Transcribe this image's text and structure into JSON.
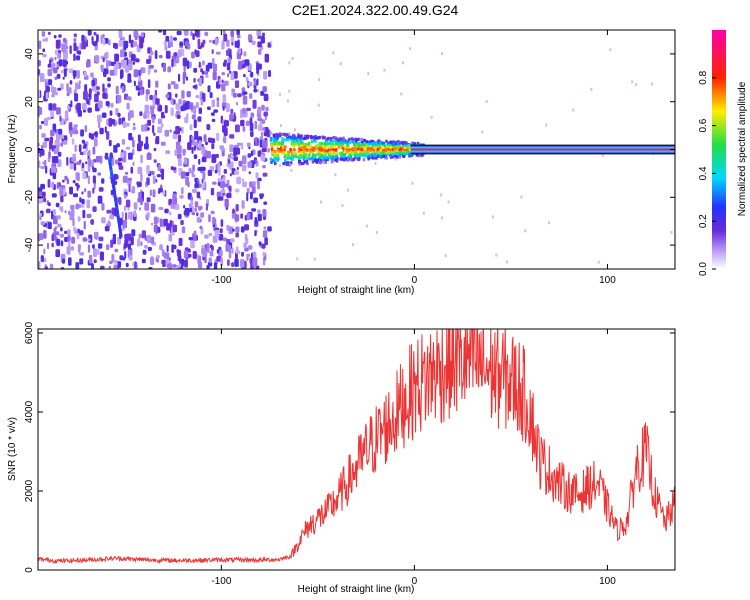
{
  "title": "C2E1.2024.322.00.49.G24",
  "colors": {
    "snr_line": "#ee3333",
    "frame": "#000000",
    "background": "#ffffff",
    "spectro_noise": "#6a2bd9",
    "spectro_core": "#cc0000",
    "spectro_band": "#2bd959"
  },
  "chart_data": [
    {
      "id": "spectrogram",
      "type": "heatmap",
      "xlabel": "Height of straight line (km)",
      "ylabel": "Frequency (Hz)",
      "xlim": [
        -195,
        135
      ],
      "ylim": [
        -50,
        50
      ],
      "xticks": [
        -100,
        0,
        100
      ],
      "xtick_labels": [
        "-100",
        "0",
        "100"
      ],
      "yticks": [
        -40,
        -20,
        0,
        20,
        40
      ],
      "ytick_labels": [
        "-40",
        "-20",
        "0",
        "20",
        "40"
      ],
      "grid": false,
      "colorbar": {
        "label": "Normalized spectral amplitude",
        "range": [
          0.0,
          1.0
        ],
        "ticks": [
          0.0,
          0.2,
          0.4,
          0.6,
          0.8
        ],
        "tick_labels": [
          "0.0",
          "0.2",
          "0.4",
          "0.6",
          "0.8"
        ],
        "colormap": "hsv-rainbow (white at 0, violet → blue → cyan → green → yellow → red → magenta)"
      },
      "regions": [
        {
          "name": "noise",
          "x_range": [
            -195,
            -75
          ],
          "freq_range": [
            -50,
            50
          ],
          "amplitude": 0.05
        },
        {
          "name": "emerging-signal",
          "x_range": [
            -75,
            5
          ],
          "freq_range": [
            -4,
            5
          ],
          "amplitude": 0.45
        },
        {
          "name": "steady-carrier",
          "x_range": [
            5,
            135
          ],
          "freq_range": [
            -1,
            1
          ],
          "amplitude": 0.95
        }
      ],
      "streak": {
        "x": [
          -158,
          -152
        ],
        "freq": [
          -4,
          -36
        ]
      }
    },
    {
      "id": "snr",
      "type": "line",
      "xlabel": "Height of straight line (km)",
      "ylabel": "SNR (10 * v/v)",
      "xlim": [
        -195,
        135
      ],
      "ylim": [
        0,
        6100
      ],
      "xticks": [
        -100,
        0,
        100
      ],
      "xtick_labels": [
        "-100",
        "0",
        "100"
      ],
      "yticks": [
        0,
        2000,
        4000,
        6000
      ],
      "ytick_labels": [
        "0",
        "2000",
        "4000",
        "6000"
      ],
      "grid": false,
      "series": [
        {
          "x": [
            -195,
            -185,
            -170,
            -155,
            -140,
            -125,
            -110,
            -95,
            -80,
            -70,
            -64,
            -60,
            -55,
            -50,
            -45,
            -40,
            -35,
            -30,
            -25,
            -20,
            -15,
            -10,
            -5,
            0,
            5,
            10,
            15,
            20,
            25,
            30,
            35,
            40,
            45,
            50,
            55,
            60,
            62,
            65,
            70,
            75,
            80,
            85,
            90,
            95,
            100,
            105,
            110,
            115,
            120,
            125,
            130,
            135
          ],
          "y": [
            280,
            230,
            250,
            300,
            260,
            240,
            250,
            260,
            250,
            270,
            350,
            700,
            1100,
            1300,
            1500,
            1800,
            2200,
            2600,
            3000,
            3300,
            3600,
            3900,
            4300,
            4600,
            4800,
            5000,
            5100,
            5300,
            5300,
            5300,
            5200,
            5000,
            4900,
            4800,
            4600,
            4100,
            3500,
            2800,
            2500,
            2200,
            2000,
            1900,
            2100,
            2200,
            1600,
            1000,
            1200,
            2600,
            3000,
            1800,
            1200,
            1700
          ]
        }
      ]
    }
  ]
}
